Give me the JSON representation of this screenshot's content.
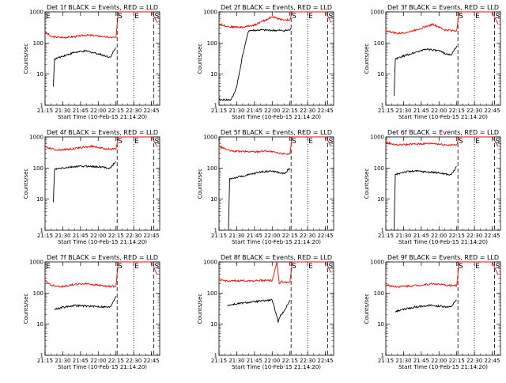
{
  "chart_data": [
    {
      "type": "line",
      "title": "Det 1f BLACK = Events, RED = LLD",
      "xlabel": "Start Time (10-Feb-15 21:14:20)",
      "ylabel": "Counts/sec",
      "yscale": "log",
      "ylim": [
        1,
        1000
      ],
      "xlim": [
        "21:15",
        "22:52"
      ],
      "xticks": [
        "21:15",
        "21:30",
        "21:45",
        "22:00",
        "22:15",
        "22:30",
        "22:45"
      ],
      "yticks": [
        "1",
        "10",
        "100",
        "1000"
      ],
      "markers": [
        {
          "label": "E",
          "x": "21:15"
        },
        {
          "label": "S",
          "x": "22:16"
        },
        {
          "label": "E",
          "x": "22:30"
        },
        {
          "label": "S",
          "x": "22:47"
        }
      ],
      "series": [
        {
          "color": "#ff0000",
          "x": [
            "21:15",
            "21:20",
            "21:30",
            "21:40",
            "21:50",
            "22:00",
            "22:10",
            "22:15",
            "22:17",
            "22:30",
            "22:45",
            "22:50"
          ],
          "y": [
            230,
            160,
            150,
            160,
            180,
            170,
            150,
            150,
            1000,
            1000,
            1000,
            450
          ]
        },
        {
          "color": "#000000",
          "x": [
            "21:22",
            "21:23",
            "21:30",
            "21:40",
            "21:50",
            "22:00",
            "22:10",
            "22:15"
          ],
          "y": [
            4,
            30,
            38,
            50,
            55,
            45,
            35,
            70
          ]
        }
      ]
    },
    {
      "type": "line",
      "title": "Det 2f BLACK = Events, RED = LLD",
      "xlabel": "Start Time (10-Feb-15 21:14:20)",
      "ylabel": "Counts/sec",
      "yscale": "log",
      "ylim": [
        1,
        1000
      ],
      "xlim": [
        "21:15",
        "22:52"
      ],
      "xticks": [
        "21:15",
        "21:30",
        "21:45",
        "22:00",
        "22:15",
        "22:30",
        "22:45"
      ],
      "yticks": [
        "1",
        "10",
        "100",
        "1000"
      ],
      "markers": [
        {
          "label": "S",
          "x": "22:16"
        },
        {
          "label": "E",
          "x": "22:30"
        },
        {
          "label": "S",
          "x": "22:47"
        }
      ],
      "series": [
        {
          "color": "#ff0000",
          "x": [
            "21:15",
            "21:25",
            "21:35",
            "21:45",
            "21:55",
            "22:00",
            "22:05",
            "22:10",
            "22:15",
            "22:17",
            "22:30",
            "22:45",
            "22:50"
          ],
          "y": [
            400,
            330,
            320,
            380,
            560,
            700,
            600,
            560,
            550,
            1000,
            1000,
            1000,
            450
          ]
        },
        {
          "color": "#000000",
          "x": [
            "21:15",
            "21:25",
            "21:27",
            "21:30",
            "21:35",
            "21:40",
            "21:50",
            "22:00",
            "22:10",
            "22:15",
            "22:16"
          ],
          "y": [
            1.5,
            1.5,
            2,
            4,
            40,
            250,
            260,
            255,
            250,
            260,
            300
          ]
        }
      ]
    },
    {
      "type": "line",
      "title": "Det 3f BLACK = Events, RED = LLD",
      "xlabel": "Start Time (10-Feb-15 21:14:20)",
      "ylabel": "Counts/sec",
      "yscale": "log",
      "ylim": [
        1,
        1000
      ],
      "xlim": [
        "21:15",
        "22:52"
      ],
      "xticks": [
        "21:15",
        "21:30",
        "21:45",
        "22:00",
        "22:15",
        "22:30",
        "22:45"
      ],
      "yticks": [
        "1",
        "10",
        "100",
        "1000"
      ],
      "markers": [
        {
          "label": "S",
          "x": "22:16"
        },
        {
          "label": "E",
          "x": "22:30"
        },
        {
          "label": "S",
          "x": "22:47"
        }
      ],
      "series": [
        {
          "color": "#ff0000",
          "x": [
            "21:15",
            "21:25",
            "21:35",
            "21:45",
            "21:55",
            "22:05",
            "22:15",
            "22:17",
            "22:30",
            "22:45",
            "22:50"
          ],
          "y": [
            250,
            200,
            230,
            300,
            400,
            260,
            250,
            1000,
            1000,
            1000,
            400
          ]
        },
        {
          "color": "#000000",
          "x": [
            "21:22",
            "21:23",
            "21:30",
            "21:40",
            "21:50",
            "22:00",
            "22:10",
            "22:15"
          ],
          "y": [
            2,
            30,
            38,
            50,
            65,
            55,
            40,
            80
          ]
        }
      ]
    },
    {
      "type": "line",
      "title": "Det 4f BLACK = Events, RED = LLD",
      "xlabel": "Start Time (10-Feb-15 21:14:20)",
      "ylabel": "Counts/sec",
      "yscale": "log",
      "ylim": [
        1,
        1000
      ],
      "xlim": [
        "21:15",
        "22:52"
      ],
      "xticks": [
        "21:15",
        "21:30",
        "21:45",
        "22:00",
        "22:15",
        "22:30",
        "22:45"
      ],
      "yticks": [
        "1",
        "10",
        "100",
        "1000"
      ],
      "markers": [
        {
          "label": "S",
          "x": "22:16"
        },
        {
          "label": "E",
          "x": "22:30"
        },
        {
          "label": "S",
          "x": "22:47"
        }
      ],
      "series": [
        {
          "color": "#ff0000",
          "x": [
            "21:15",
            "21:25",
            "21:35",
            "21:45",
            "21:55",
            "22:05",
            "22:15",
            "22:17",
            "22:30",
            "22:45",
            "22:50"
          ],
          "y": [
            480,
            380,
            400,
            450,
            500,
            420,
            400,
            1000,
            1000,
            1000,
            480
          ]
        },
        {
          "color": "#000000",
          "x": [
            "21:22",
            "21:23",
            "21:30",
            "21:40",
            "21:50",
            "22:00",
            "22:10",
            "22:15"
          ],
          "y": [
            8,
            90,
            100,
            110,
            115,
            110,
            100,
            160
          ]
        }
      ]
    },
    {
      "type": "line",
      "title": "Det 5f BLACK = Events, RED = LLD",
      "xlabel": "Start Time (10-Feb-15 21:14:20)",
      "ylabel": "Counts/sec",
      "yscale": "log",
      "ylim": [
        1,
        1000
      ],
      "xlim": [
        "21:15",
        "22:52"
      ],
      "xticks": [
        "21:15",
        "21:30",
        "21:45",
        "22:00",
        "22:15",
        "22:30",
        "22:45"
      ],
      "yticks": [
        "1",
        "10",
        "100",
        "1000"
      ],
      "markers": [
        {
          "label": "S",
          "x": "22:16"
        },
        {
          "label": "E",
          "x": "22:30"
        },
        {
          "label": "S",
          "x": "22:47"
        }
      ],
      "series": [
        {
          "color": "#ff0000",
          "x": [
            "21:15",
            "21:25",
            "21:35",
            "21:45",
            "21:55",
            "22:05",
            "22:15",
            "22:17",
            "22:30",
            "22:45",
            "22:50"
          ],
          "y": [
            500,
            350,
            340,
            330,
            360,
            300,
            280,
            1000,
            1000,
            1000,
            500
          ]
        },
        {
          "color": "#000000",
          "x": [
            "21:23",
            "21:24",
            "21:30",
            "21:40",
            "21:50",
            "22:00",
            "22:10",
            "22:15"
          ],
          "y": [
            1,
            45,
            50,
            60,
            75,
            80,
            65,
            100
          ]
        }
      ]
    },
    {
      "type": "line",
      "title": "Det 6f BLACK = Events, RED = LLD",
      "xlabel": "Start Time (10-Feb-15 21:14:20)",
      "ylabel": "Counts/sec",
      "yscale": "log",
      "ylim": [
        1,
        1000
      ],
      "xlim": [
        "21:15",
        "22:52"
      ],
      "xticks": [
        "21:15",
        "21:30",
        "21:45",
        "22:00",
        "22:15",
        "22:30",
        "22:45"
      ],
      "yticks": [
        "1",
        "10",
        "100",
        "1000"
      ],
      "markers": [
        {
          "label": "S",
          "x": "22:16"
        },
        {
          "label": "E",
          "x": "22:30"
        },
        {
          "label": "S",
          "x": "22:47"
        }
      ],
      "series": [
        {
          "color": "#ff0000",
          "x": [
            "21:15",
            "21:25",
            "21:35",
            "21:45",
            "21:55",
            "22:05",
            "22:15",
            "22:17",
            "22:30",
            "22:45",
            "22:50"
          ],
          "y": [
            650,
            550,
            580,
            600,
            620,
            560,
            550,
            1000,
            1000,
            1000,
            500
          ]
        },
        {
          "color": "#000000",
          "x": [
            "21:22",
            "21:23",
            "21:30",
            "21:40",
            "21:50",
            "22:00",
            "22:10",
            "22:15"
          ],
          "y": [
            1,
            60,
            75,
            80,
            75,
            70,
            60,
            110
          ]
        }
      ]
    },
    {
      "type": "line",
      "title": "Det 7f BLACK = Events, RED = LLD",
      "xlabel": "Start Time (10-Feb-15 21:14:20)",
      "ylabel": "Counts/sec",
      "yscale": "log",
      "ylim": [
        1,
        1000
      ],
      "xlim": [
        "21:15",
        "22:52"
      ],
      "xticks": [
        "21:15",
        "21:30",
        "21:45",
        "22:00",
        "22:15",
        "22:30",
        "22:45"
      ],
      "yticks": [
        "1",
        "10",
        "100",
        "1000"
      ],
      "markers": [
        {
          "label": "E",
          "x": "21:15"
        },
        {
          "label": "S",
          "x": "22:16"
        },
        {
          "label": "E",
          "x": "22:30"
        },
        {
          "label": "S",
          "x": "22:47"
        }
      ],
      "series": [
        {
          "color": "#ff0000",
          "x": [
            "21:15",
            "21:20",
            "21:30",
            "21:40",
            "21:50",
            "22:00",
            "22:10",
            "22:15",
            "22:17",
            "22:30",
            "22:45",
            "22:50"
          ],
          "y": [
            250,
            180,
            160,
            190,
            200,
            180,
            160,
            170,
            1000,
            1000,
            1000,
            380
          ]
        },
        {
          "color": "#000000",
          "x": [
            "21:23",
            "21:30",
            "21:40",
            "21:50",
            "22:00",
            "22:10",
            "22:15"
          ],
          "y": [
            30,
            35,
            40,
            38,
            37,
            35,
            80
          ]
        }
      ]
    },
    {
      "type": "line",
      "title": "Det 8f BLACK = Events, RED = LLD",
      "xlabel": "Start Time (10-Feb-15 21:14:20)",
      "ylabel": "Counts/sec",
      "yscale": "log",
      "ylim": [
        1,
        1000
      ],
      "xlim": [
        "21:15",
        "22:52"
      ],
      "xticks": [
        "21:15",
        "21:30",
        "21:45",
        "22:00",
        "22:15",
        "22:30",
        "22:45"
      ],
      "yticks": [
        "1",
        "10",
        "100",
        "1000"
      ],
      "markers": [
        {
          "label": "S",
          "x": "22:16"
        },
        {
          "label": "E",
          "x": "22:30"
        },
        {
          "label": "S",
          "x": "22:47"
        }
      ],
      "series": [
        {
          "color": "#ff0000",
          "x": [
            "21:15",
            "21:25",
            "21:35",
            "21:45",
            "21:55",
            "22:00",
            "22:04",
            "22:06",
            "22:08",
            "22:15",
            "22:17",
            "22:30",
            "22:45",
            "22:50"
          ],
          "y": [
            260,
            240,
            250,
            250,
            260,
            250,
            1000,
            200,
            230,
            220,
            1000,
            1000,
            1000,
            450
          ]
        },
        {
          "color": "#000000",
          "x": [
            "21:22",
            "21:30",
            "21:40",
            "21:50",
            "22:00",
            "22:05",
            "22:07",
            "22:10",
            "22:15"
          ],
          "y": [
            40,
            45,
            50,
            55,
            60,
            12,
            20,
            25,
            60
          ]
        }
      ]
    },
    {
      "type": "line",
      "title": "Det 9f BLACK = Events, RED = LLD",
      "xlabel": "Start Time (10-Feb-15 21:14:20)",
      "ylabel": "Counts/sec",
      "yscale": "log",
      "ylim": [
        1,
        1000
      ],
      "xlim": [
        "21:15",
        "22:52"
      ],
      "xticks": [
        "21:15",
        "21:30",
        "21:45",
        "22:00",
        "22:15",
        "22:30",
        "22:45"
      ],
      "yticks": [
        "1",
        "10",
        "100",
        "1000"
      ],
      "markers": [
        {
          "label": "S",
          "x": "22:16"
        },
        {
          "label": "E",
          "x": "22:30"
        },
        {
          "label": "S",
          "x": "22:47"
        }
      ],
      "series": [
        {
          "color": "#ff0000",
          "x": [
            "21:15",
            "21:25",
            "21:35",
            "21:45",
            "21:55",
            "22:05",
            "22:15",
            "22:17",
            "22:30",
            "22:45",
            "22:50"
          ],
          "y": [
            180,
            160,
            170,
            180,
            200,
            180,
            170,
            1000,
            1000,
            1000,
            380
          ]
        },
        {
          "color": "#000000",
          "x": [
            "21:23",
            "21:30",
            "21:40",
            "21:50",
            "22:00",
            "22:10",
            "22:15"
          ],
          "y": [
            25,
            30,
            35,
            40,
            38,
            35,
            60
          ]
        }
      ]
    }
  ]
}
